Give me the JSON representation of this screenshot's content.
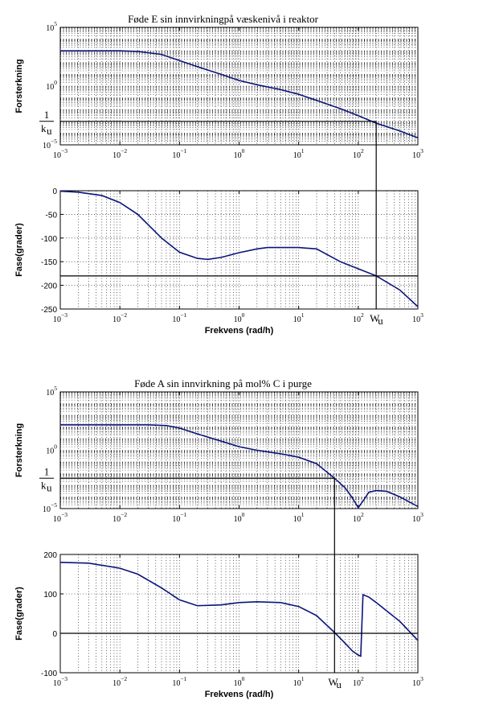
{
  "chart_data": [
    {
      "type": "line",
      "title": "Føde E sin innvirkningpå væskenivå i reaktor",
      "ylabel": "Forsterkning",
      "xlabel": "",
      "xscale": "log",
      "yscale": "log",
      "xlim": [
        0.001,
        1000
      ],
      "ylim_exp": [
        -5,
        5
      ],
      "x_ticks": [
        -3,
        -2,
        -1,
        0,
        1,
        2,
        3
      ],
      "y_ticks": [
        -5,
        0,
        5
      ],
      "grid": true,
      "ann_1": "1",
      "ann_k": "k",
      "ann_u": "u",
      "x": [
        0.001,
        0.002,
        0.005,
        0.01,
        0.02,
        0.05,
        0.1,
        0.2,
        0.5,
        1,
        2,
        5,
        10,
        20,
        50,
        100,
        200,
        500,
        1000
      ],
      "values": [
        1000,
        1000,
        1000,
        1000,
        900,
        500,
        150,
        45,
        10,
        3,
        1.3,
        0.5,
        0.2,
        0.06,
        0.012,
        0.003,
        0.0007,
        0.00015,
        4e-05
      ],
      "guide_y": 0.001
    },
    {
      "type": "line",
      "title": "",
      "ylabel": "Fase(grader)",
      "xlabel": "Frekvens  (rad/h)",
      "xscale": "log",
      "yscale": "linear",
      "xlim": [
        0.001,
        1000
      ],
      "ylim": [
        -250,
        0
      ],
      "x_ticks": [
        -3,
        -2,
        -1,
        0,
        1,
        2,
        3
      ],
      "y_ticks": [
        0,
        -50,
        -100,
        -150,
        -200,
        -250
      ],
      "grid": true,
      "wu_w": "W",
      "wu_u": "u",
      "x": [
        0.001,
        0.002,
        0.005,
        0.01,
        0.02,
        0.05,
        0.1,
        0.2,
        0.3,
        0.5,
        1,
        2,
        3,
        5,
        10,
        20,
        50,
        100,
        200,
        500,
        1000
      ],
      "values": [
        -1,
        -3,
        -10,
        -25,
        -50,
        -100,
        -130,
        -143,
        -145,
        -141,
        -131,
        -123,
        -120,
        -120,
        -120,
        -123,
        -150,
        -165,
        -180,
        -210,
        -245
      ],
      "guide_y": -180,
      "guide_x": 200
    },
    {
      "type": "line",
      "title": "Føde A sin innvirkning på mol% C i purge",
      "ylabel": "Forsterkning",
      "xlabel": "",
      "xscale": "log",
      "yscale": "log",
      "xlim": [
        0.001,
        1000
      ],
      "ylim_exp": [
        -5,
        5
      ],
      "x_ticks": [
        -3,
        -2,
        -1,
        0,
        1,
        2,
        3
      ],
      "y_ticks": [
        -5,
        0,
        5
      ],
      "grid": true,
      "ann_1": "1",
      "ann_k": "k",
      "ann_u": "u",
      "x": [
        0.001,
        0.003,
        0.01,
        0.03,
        0.06,
        0.1,
        0.2,
        0.5,
        1,
        2,
        5,
        10,
        20,
        40,
        60,
        80,
        100,
        130,
        150,
        200,
        300,
        500,
        1000
      ],
      "values": [
        150,
        150,
        150,
        150,
        130,
        80,
        25,
        6,
        2,
        1,
        0.5,
        0.25,
        0.07,
        0.004,
        0.0006,
        8e-05,
        1.2e-05,
        8e-05,
        0.00025,
        0.00035,
        0.0003,
        0.0001,
        1.5e-05
      ],
      "guide_y": 0.004
    },
    {
      "type": "line",
      "title": "",
      "ylabel": "Fase(grader)",
      "xlabel": "Frekvens  (rad/h)",
      "xscale": "log",
      "yscale": "linear",
      "xlim": [
        0.001,
        1000
      ],
      "ylim": [
        -100,
        200
      ],
      "x_ticks": [
        -3,
        -2,
        -1,
        0,
        1,
        2,
        3
      ],
      "y_ticks": [
        200,
        100,
        0,
        -100
      ],
      "grid": true,
      "wu_w": "W",
      "wu_u": "u",
      "x": [
        0.001,
        0.003,
        0.01,
        0.02,
        0.05,
        0.1,
        0.2,
        0.5,
        1,
        2,
        5,
        10,
        20,
        40,
        60,
        80,
        100,
        110,
        120,
        150,
        200,
        500,
        1000
      ],
      "values": [
        180,
        178,
        165,
        150,
        115,
        85,
        70,
        72,
        78,
        80,
        78,
        68,
        45,
        2,
        -25,
        -45,
        -55,
        -58,
        98,
        92,
        78,
        30,
        -18
      ],
      "guide_y": 0,
      "guide_x": 40
    }
  ]
}
